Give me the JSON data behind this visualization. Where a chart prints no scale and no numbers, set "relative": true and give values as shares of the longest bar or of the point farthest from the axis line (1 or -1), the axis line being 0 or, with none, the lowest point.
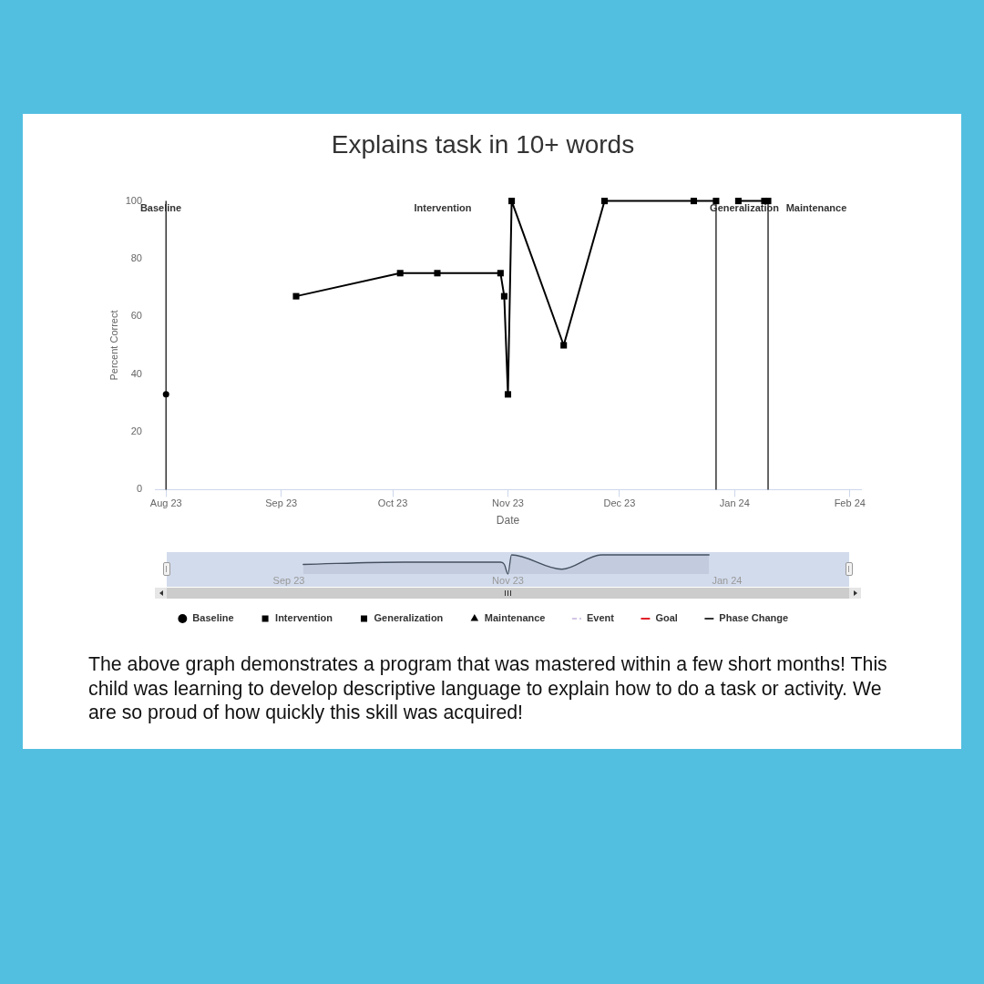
{
  "chart_data": [
    {
      "type": "line",
      "title": "Explains task in 10+ words",
      "xlabel": "Date",
      "ylabel": "Percent Correct",
      "xlim": [
        "2023-07-29",
        "2024-02-04"
      ],
      "xticks": [
        {
          "value": "2023-08-01",
          "label": "Aug 23"
        },
        {
          "value": "2023-09-01",
          "label": "Sep 23"
        },
        {
          "value": "2023-10-01",
          "label": "Oct 23"
        },
        {
          "value": "2023-11-01",
          "label": "Nov 23"
        },
        {
          "value": "2023-12-01",
          "label": "Dec 23"
        },
        {
          "value": "2024-01-01",
          "label": "Jan 24"
        },
        {
          "value": "2024-02-01",
          "label": "Feb 24"
        }
      ],
      "ylim": [
        0,
        100
      ],
      "yticks": [
        0,
        20,
        40,
        60,
        80,
        100
      ],
      "series": [
        {
          "name": "Baseline",
          "color": "#000000",
          "marker": "circle",
          "x": [
            "2023-08-01"
          ],
          "values": [
            33
          ]
        },
        {
          "name": "Intervention",
          "color": "#000000",
          "marker": "square",
          "x": [
            "2023-09-05",
            "2023-10-03",
            "2023-10-13",
            "2023-10-30",
            "2023-10-31",
            "2023-11-01",
            "2023-11-02",
            "2023-11-16",
            "2023-11-27",
            "2023-12-21",
            "2023-12-27"
          ],
          "values": [
            67,
            75,
            75,
            75,
            67,
            33,
            100,
            50,
            100,
            100,
            100
          ]
        },
        {
          "name": "Generalization",
          "color": "#000000",
          "marker": "square",
          "x": [
            "2024-01-02",
            "2024-01-09",
            "2024-01-10"
          ],
          "values": [
            100,
            100,
            100
          ]
        },
        {
          "name": "Maintenance",
          "color": "#000000",
          "marker": "triangle"
        },
        {
          "name": "Event",
          "color": "#a58ac9",
          "marker": "none",
          "line_style": "dashed"
        },
        {
          "name": "Goal",
          "color": "#e31e2a",
          "marker": "none"
        },
        {
          "name": "Phase Change",
          "color": "#333333",
          "marker": "none"
        }
      ],
      "ref_lines": [
        {
          "axis": "x",
          "value": "2023-08-01",
          "color": "#333333"
        },
        {
          "axis": "x",
          "value": "2023-12-27",
          "color": "#333333"
        },
        {
          "axis": "x",
          "value": "2024-01-10",
          "color": "#333333"
        }
      ],
      "grid": false,
      "legend": "bottom",
      "annotations": [
        "Baseline",
        "Intervention",
        "Generalization",
        "Maintenance",
        "The above graph demonstrates a program that was mastered within a few short months! This child was learning to develop descriptive language to explain how to do a task or activity. We are so proud of how quickly this skill was acquired!"
      ]
    },
    {
      "type": "area",
      "relative": true,
      "x": [
        "2023-09-05",
        "2023-10-03",
        "2023-10-13",
        "2023-10-30",
        "2023-10-31",
        "2023-11-01",
        "2023-11-02",
        "2023-11-16",
        "2023-11-27",
        "2023-12-21",
        "2023-12-27"
      ],
      "xlim": [
        "2023-07-29",
        "2024-02-04"
      ],
      "xticks": [
        {
          "value": "2023-09-01",
          "label": "Sep 23"
        },
        {
          "value": "2023-11-01",
          "label": "Nov 23"
        },
        {
          "value": "2024-01-01",
          "label": "Jan 24"
        }
      ],
      "series": [
        {
          "color": "#44505f",
          "values": [
            0.5,
            0.62,
            0.62,
            0.62,
            0.5,
            0,
            1,
            0.25,
            1,
            1,
            1
          ]
        }
      ]
    }
  ]
}
